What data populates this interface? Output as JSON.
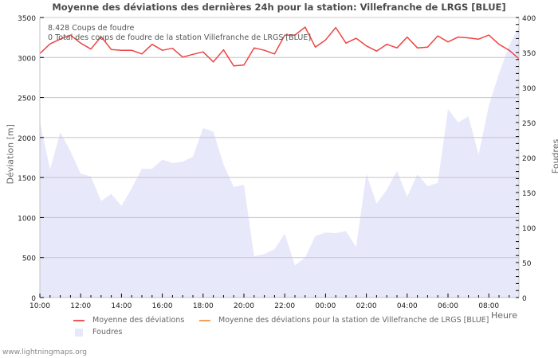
{
  "chart_data": {
    "type": "line",
    "title": "Moyenne des déviations des dernières 24h pour la station: Villefranche de LRGS [BLUE]",
    "xlabel": "Heure",
    "ylabel": "Déviation  [m]",
    "y2label": "Foudres",
    "ylim": [
      0,
      3500
    ],
    "y2lim": [
      0,
      400
    ],
    "yticks": [
      0,
      500,
      1000,
      1500,
      2000,
      2500,
      3000,
      3500
    ],
    "y2ticks": [
      0,
      50,
      100,
      150,
      200,
      250,
      300,
      350,
      400
    ],
    "xticks": [
      "10:00",
      "12:00",
      "14:00",
      "16:00",
      "18:00",
      "20:00",
      "22:00",
      "00:00",
      "02:00",
      "04:00",
      "06:00",
      "08:00"
    ],
    "grid": true,
    "legend_position": "bottom",
    "x": [
      "10:00",
      "10:30",
      "11:00",
      "11:30",
      "12:00",
      "12:30",
      "13:00",
      "13:30",
      "14:00",
      "14:30",
      "15:00",
      "15:30",
      "16:00",
      "16:30",
      "17:00",
      "17:30",
      "18:00",
      "18:30",
      "19:00",
      "19:30",
      "20:00",
      "20:30",
      "21:00",
      "21:30",
      "22:00",
      "22:30",
      "23:00",
      "23:30",
      "00:00",
      "00:30",
      "01:00",
      "01:30",
      "02:00",
      "02:30",
      "03:00",
      "03:30",
      "04:00",
      "04:30",
      "05:00",
      "05:30",
      "06:00",
      "06:30",
      "07:00",
      "07:30",
      "08:00",
      "08:30",
      "09:00",
      "09:30"
    ],
    "series": [
      {
        "name": "Moyenne des déviations",
        "axis": "left",
        "style": "line",
        "color": "#ee4444",
        "values": [
          3050,
          3170,
          3230,
          3280,
          3180,
          3105,
          3260,
          3100,
          3090,
          3090,
          3045,
          3165,
          3090,
          3115,
          3005,
          3040,
          3070,
          2945,
          3095,
          2895,
          2905,
          3120,
          3090,
          3045,
          3280,
          3280,
          3380,
          3130,
          3220,
          3375,
          3180,
          3240,
          3145,
          3080,
          3165,
          3120,
          3255,
          3120,
          3130,
          3270,
          3195,
          3255,
          3245,
          3230,
          3280,
          3165,
          3090,
          2985
        ]
      },
      {
        "name": "Moyenne des déviations pour la station de Villefranche de LRGS [BLUE]",
        "axis": "left",
        "style": "line",
        "color": "#f5a05a",
        "values": []
      },
      {
        "name": "Foudres",
        "axis": "right",
        "style": "area",
        "color": "#e8e8fb",
        "values": [
          251,
          183,
          236,
          209,
          177,
          173,
          138,
          148,
          131,
          156,
          184,
          184,
          197,
          192,
          194,
          201,
          242,
          237,
          190,
          158,
          161,
          59,
          62,
          69,
          91,
          46,
          57,
          88,
          93,
          92,
          95,
          72,
          177,
          134,
          154,
          181,
          144,
          176,
          159,
          164,
          269,
          250,
          259,
          204,
          274,
          320,
          360,
          388
        ]
      }
    ],
    "annotations": [
      "8.428  Coups de foudre",
      "0 Total des coups de foudre de la station Villefranche de LRGS [BLUE]"
    ]
  },
  "legend": {
    "items": [
      {
        "label": "Moyenne des déviations",
        "color": "#ee4444"
      },
      {
        "label": "Moyenne des déviations pour la station de Villefranche de LRGS [BLUE]",
        "color": "#f5a05a"
      },
      {
        "label": "Foudres",
        "color": "#e8e8fb"
      }
    ]
  },
  "footer": "www.lightningmaps.org"
}
